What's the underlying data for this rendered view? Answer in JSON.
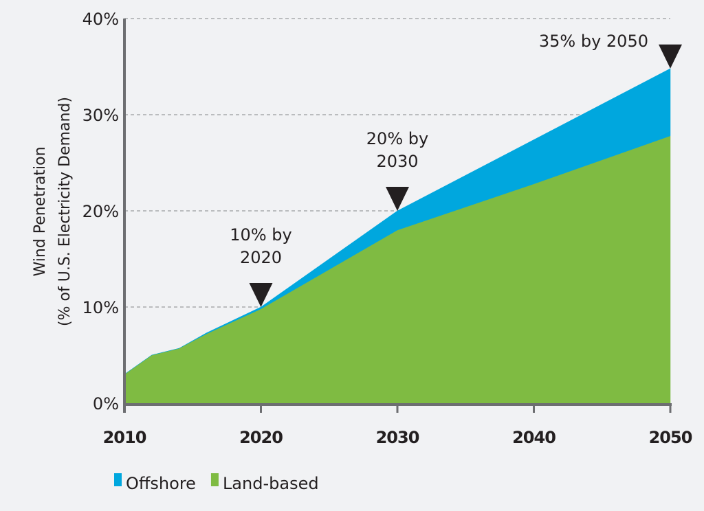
{
  "chart_data": {
    "type": "area",
    "stacked": true,
    "title": "",
    "xlabel": "",
    "ylabel": [
      "Wind Penetration",
      "(% of U.S. Electricity Demand)"
    ],
    "x": [
      2010,
      2012,
      2014,
      2016,
      2020,
      2030,
      2040,
      2050
    ],
    "xlim": [
      2010,
      2050
    ],
    "ylim": [
      0,
      40
    ],
    "x_ticks": [
      2010,
      2020,
      2030,
      2040,
      2050
    ],
    "x_tick_labels": [
      "2010",
      "2020",
      "2030",
      "2040",
      "2050"
    ],
    "y_ticks": [
      0,
      10,
      20,
      30,
      40
    ],
    "y_tick_labels": [
      "0%",
      "10%",
      "20%",
      "30%",
      "40%"
    ],
    "grid": "horizontal dashed",
    "series": [
      {
        "name": "Land-based",
        "color": "#7fbb42",
        "values": [
          3.0,
          5.0,
          5.7,
          7.2,
          9.8,
          18.0,
          22.8,
          27.8
        ]
      },
      {
        "name": "Offshore",
        "color": "#00a7de",
        "values": [
          0.0,
          0.0,
          0.0,
          0.1,
          0.2,
          2.0,
          4.6,
          7.0
        ]
      }
    ],
    "annotations": [
      {
        "x": 2020,
        "y": 10,
        "lines": [
          "10% by",
          "2020"
        ],
        "marker": "down-triangle"
      },
      {
        "x": 2030,
        "y": 20,
        "lines": [
          "20% by",
          "2030"
        ],
        "marker": "down-triangle"
      },
      {
        "x": 2050,
        "y": 34.8,
        "lines": [
          "35% by 2050"
        ],
        "marker": "down-triangle"
      }
    ],
    "legend": {
      "position": "bottom-left",
      "items": [
        {
          "label": "Offshore",
          "color": "#00a7de"
        },
        {
          "label": "Land-based",
          "color": "#7fbb42"
        }
      ]
    }
  },
  "colors": {
    "axis": "#6d6e71",
    "grid": "#a7a9ac",
    "text": "#231f20",
    "marker": "#231f20",
    "background": "#f1f2f4"
  }
}
